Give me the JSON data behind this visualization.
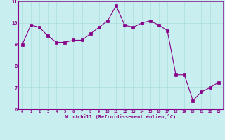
{
  "x": [
    0,
    1,
    2,
    3,
    4,
    5,
    6,
    7,
    8,
    9,
    10,
    11,
    12,
    13,
    14,
    15,
    16,
    17,
    18,
    19,
    20,
    21,
    22,
    23
  ],
  "y": [
    9.0,
    9.9,
    9.8,
    9.4,
    9.1,
    9.1,
    9.2,
    9.2,
    9.5,
    9.8,
    10.1,
    10.8,
    9.9,
    9.8,
    10.0,
    10.1,
    9.9,
    9.65,
    7.6,
    7.6,
    6.4,
    6.8,
    7.0,
    7.25
  ],
  "line_color": "#880088",
  "marker_color": "#880088",
  "bg_color": "#c8eef0",
  "grid_color": "#aadddd",
  "xlabel": "Windchill (Refroidissement éolien,°C)",
  "xlabel_color": "#880088",
  "tick_color": "#880088",
  "spine_color": "#880088",
  "ylim": [
    6,
    11
  ],
  "xlim": [
    -0.5,
    23.5
  ],
  "yticks": [
    6,
    7,
    8,
    9,
    10,
    11
  ],
  "xticks": [
    0,
    1,
    2,
    3,
    4,
    5,
    6,
    7,
    8,
    9,
    10,
    11,
    12,
    13,
    14,
    15,
    16,
    17,
    18,
    19,
    20,
    21,
    22,
    23
  ],
  "figsize": [
    3.2,
    2.0
  ],
  "dpi": 100
}
